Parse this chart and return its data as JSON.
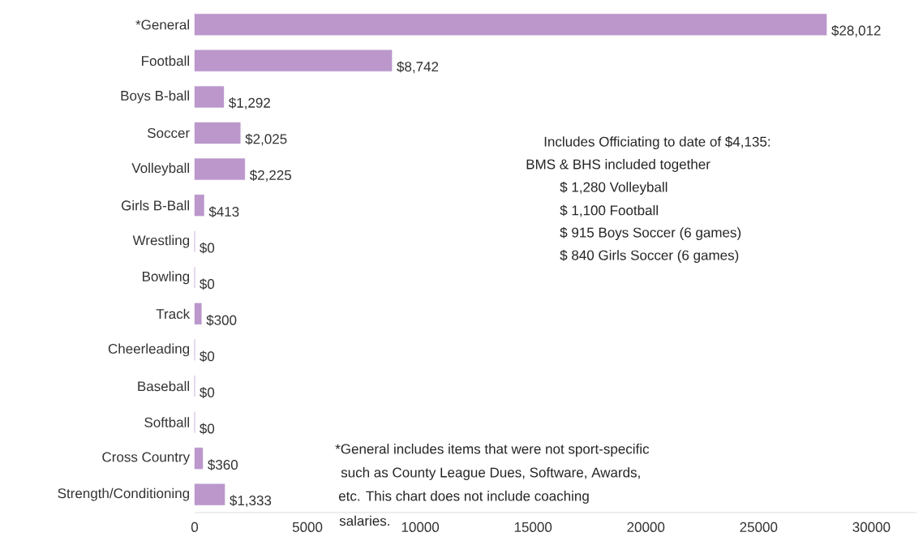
{
  "chart_data": {
    "type": "bar",
    "orientation": "horizontal",
    "categories": [
      "*General",
      "Football",
      "Boys B-ball",
      "Soccer",
      "Volleyball",
      "Girls B-Ball",
      "Wrestling",
      "Bowling",
      "Track",
      "Cheerleading",
      "Baseball",
      "Softball",
      "Cross Country",
      "Strength/Conditioning"
    ],
    "values": [
      28012,
      8742,
      1292,
      2025,
      2225,
      413,
      0,
      0,
      300,
      0,
      0,
      0,
      360,
      1333
    ],
    "value_labels": [
      "$28,012",
      "$8,742",
      "$1,292",
      "$2,025",
      "$2,225",
      "$413",
      "$0",
      "$0",
      "$300",
      "$0",
      "$0",
      "$0",
      "$360",
      "$1,333"
    ],
    "color": "#bb97cc",
    "xlim": [
      0,
      32000
    ],
    "xticks": [
      0,
      5000,
      10000,
      15000,
      20000,
      25000,
      30000
    ],
    "annotations": [
      "Includes Officiating to date of $4,135:",
      "BMS & BHS included together",
      "$ 1,280 Volleyball",
      "$ 1,100 Football",
      "$    915 Boys Soccer (6 games)",
      "$    840 Girls Soccer (6 games)",
      "*General includes items that were not sport-specific",
      "such as County League Dues, Software, Awards,",
      "etc. This chart does not include coaching",
      "salaries."
    ]
  }
}
